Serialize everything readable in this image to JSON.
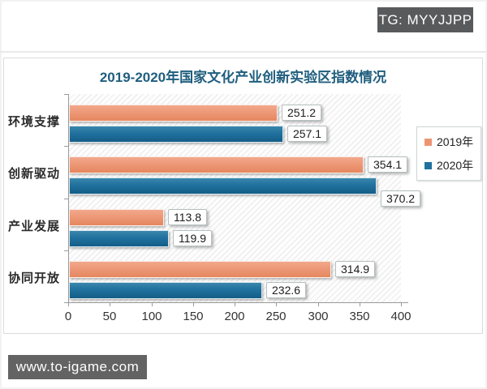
{
  "overlays": {
    "tg_badge": "TG: MYYJJPP",
    "watermark": "www.to-igame.com"
  },
  "chart_data": {
    "type": "bar",
    "orientation": "horizontal",
    "title": "2019-2020年国家文化产业创新实验区指数情况",
    "title_color": "#1f5e7e",
    "categories": [
      "环境支撑",
      "创新驱动",
      "产业发展",
      "协同开放"
    ],
    "series": [
      {
        "name": "2019年",
        "color": "#EC9573",
        "values": [
          251.2,
          354.1,
          113.8,
          314.9
        ],
        "label_dy": [
          0,
          0,
          0,
          0
        ]
      },
      {
        "name": "2020年",
        "color": "#20719E",
        "values": [
          257.1,
          370.2,
          119.9,
          232.6
        ],
        "label_dy": [
          0,
          16,
          0,
          0
        ]
      }
    ],
    "xlim": [
      0,
      400
    ],
    "x_ticks": [
      0,
      50,
      100,
      150,
      200,
      250,
      300,
      350,
      400
    ],
    "legend_position": "right",
    "plot_background": "diagonal-hatch",
    "data_labels": true,
    "grid": false
  }
}
